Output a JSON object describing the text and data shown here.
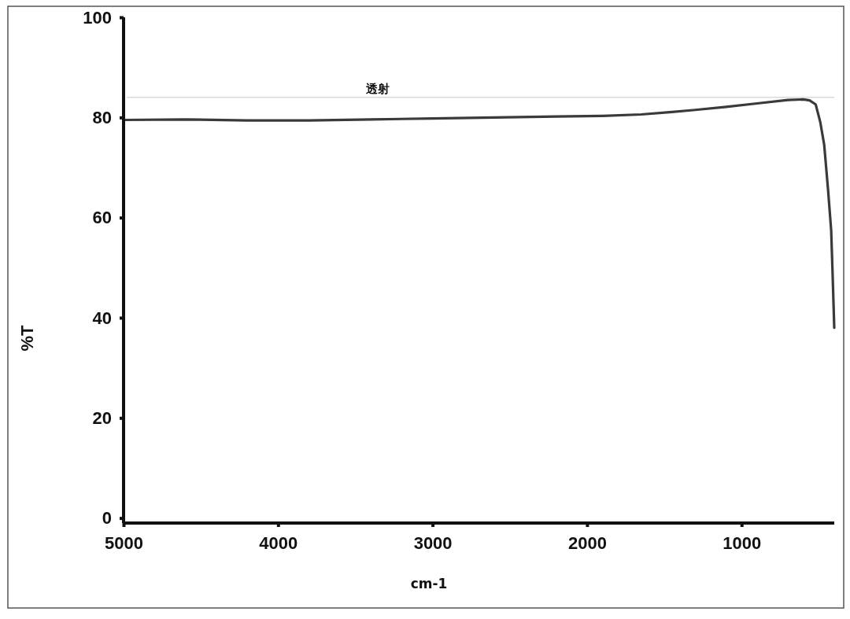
{
  "chart_data": {
    "type": "line",
    "xlabel": "cm-1",
    "ylabel": "%T",
    "x": [
      5000,
      4600,
      4200,
      3800,
      3400,
      3000,
      2600,
      2200,
      1900,
      1650,
      1450,
      1300,
      1100,
      900,
      700,
      600,
      560,
      520,
      490,
      465,
      440,
      420,
      412,
      405,
      400
    ],
    "series": [
      {
        "color": "#3a3a3a",
        "values": [
          79.5,
          79.6,
          79.4,
          79.4,
          79.6,
          79.8,
          80.0,
          80.2,
          80.3,
          80.6,
          81.1,
          81.5,
          82.1,
          82.8,
          83.5,
          83.6,
          83.4,
          82.6,
          79,
          74.5,
          65.5,
          57.5,
          50,
          43,
          38
        ]
      }
    ],
    "xlim": [
      5000,
      400
    ],
    "ylim": [
      -1,
      100
    ],
    "xticks": [
      5000,
      4000,
      3000,
      2000,
      1000
    ],
    "yticks": [
      0,
      20,
      40,
      60,
      80,
      100
    ],
    "ref_lines": [
      {
        "axis": "y",
        "value": 84,
        "label": "透射",
        "color": "#d9d9d9"
      }
    ]
  }
}
